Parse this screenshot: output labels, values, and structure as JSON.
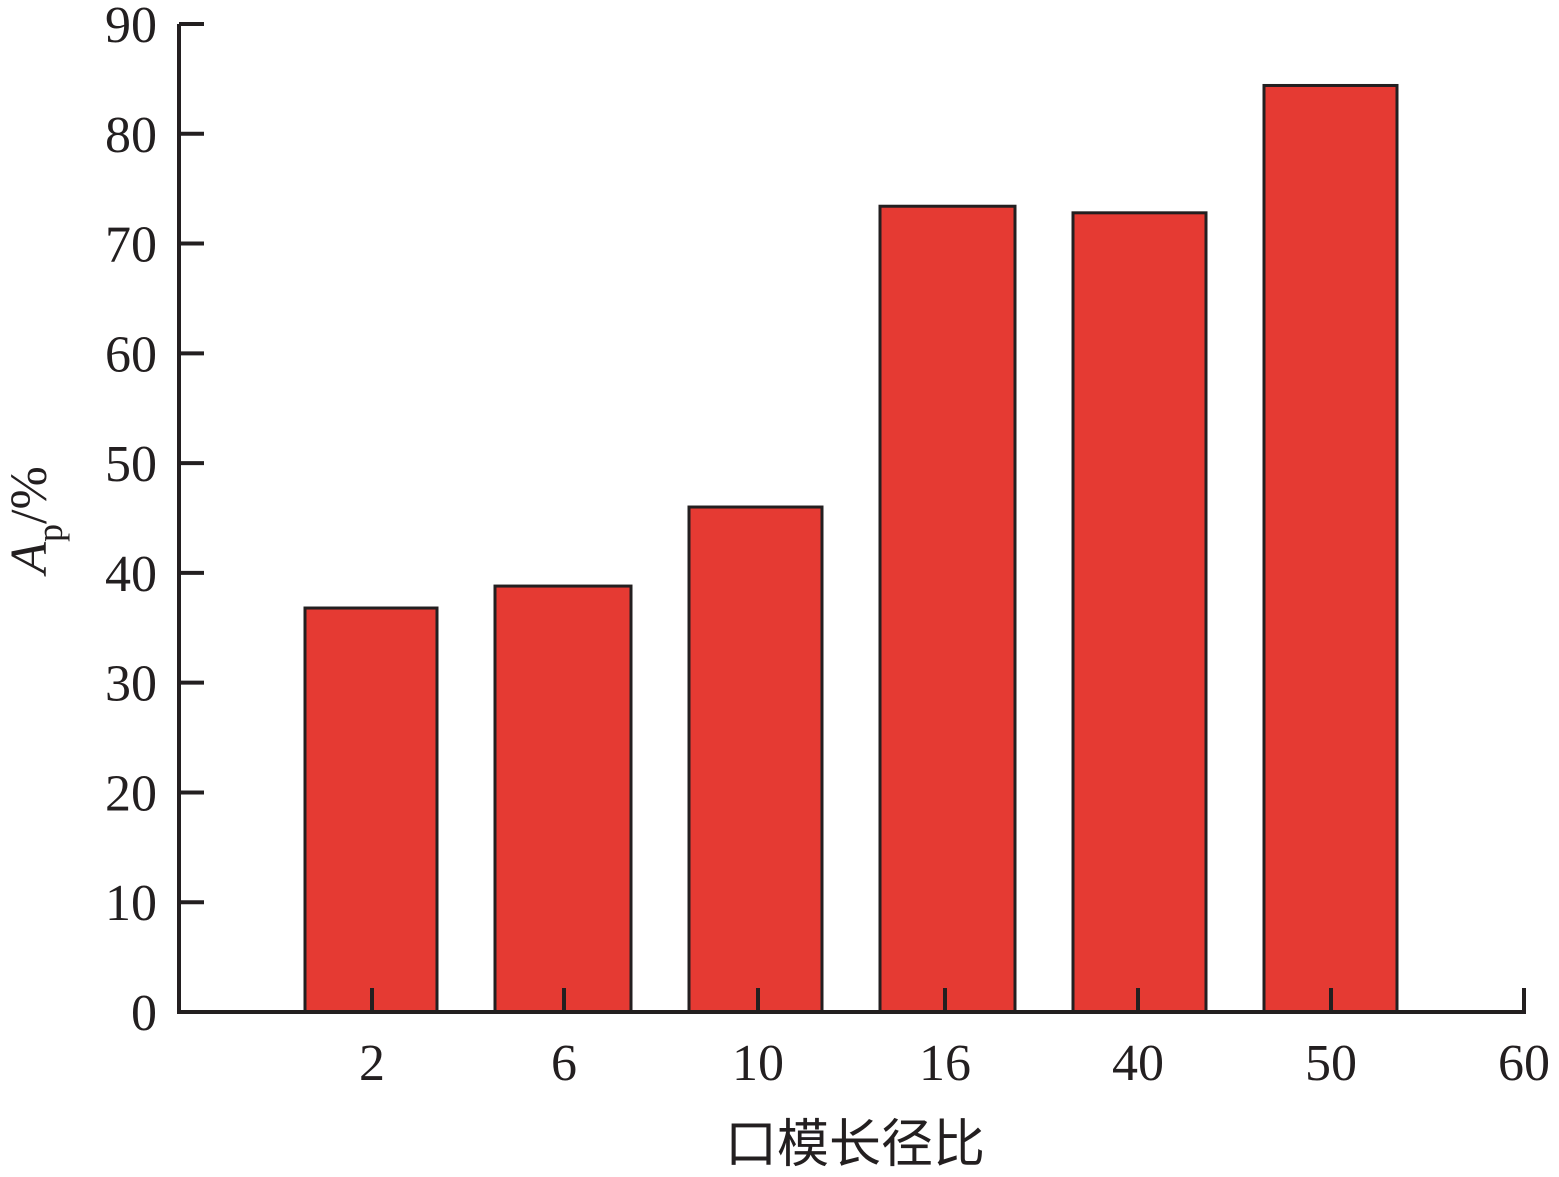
{
  "chart_data": {
    "type": "bar",
    "categories": [
      "2",
      "6",
      "10",
      "16",
      "40",
      "50"
    ],
    "x_ticks": [
      "2",
      "6",
      "10",
      "16",
      "40",
      "50",
      "60"
    ],
    "values": [
      36.8,
      38.8,
      46.0,
      73.4,
      72.8,
      84.4
    ],
    "xlabel": "口模长径比",
    "ylabel": {
      "symbol": "A",
      "subscript": "p",
      "unit": "/%"
    },
    "ylim": [
      0,
      90
    ],
    "yticks": [
      0,
      10,
      20,
      30,
      40,
      50,
      60,
      70,
      80,
      90
    ],
    "grid": false,
    "colors": {
      "bar_fill": "#e53a33",
      "bar_stroke": "#231f20",
      "axis": "#231f20"
    }
  }
}
